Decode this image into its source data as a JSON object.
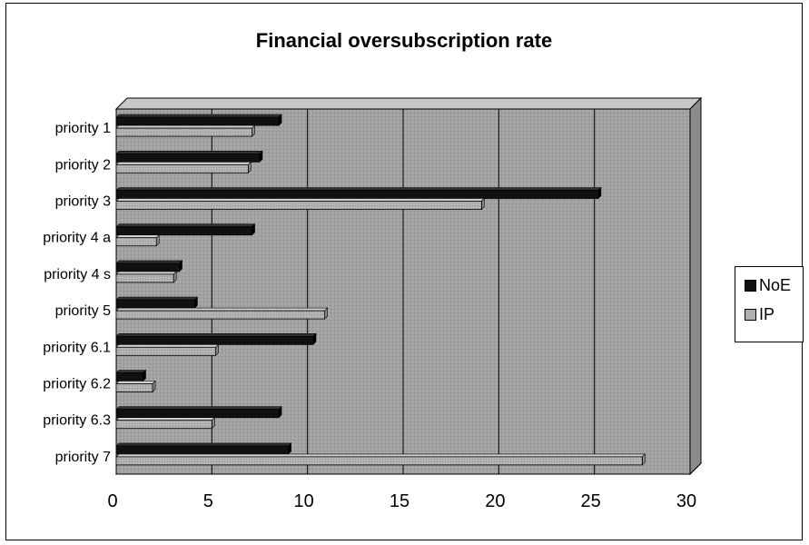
{
  "chart_data": {
    "type": "bar",
    "orientation": "horizontal",
    "title": "Financial oversubscription rate",
    "xlabel": "",
    "ylabel": "",
    "categories": [
      "priority 1",
      "priority 2",
      "priority 3",
      "priority 4 a",
      "priority 4 s",
      "priority 5",
      "priority 6.1",
      "priority 6.2",
      "priority 6.3",
      "priority 7"
    ],
    "series": [
      {
        "name": "NoE",
        "values": [
          8.5,
          7.5,
          25.2,
          7.1,
          3.3,
          4.1,
          10.3,
          1.4,
          8.5,
          9.0
        ],
        "color": "#111111"
      },
      {
        "name": "IP",
        "values": [
          7.1,
          6.9,
          19.1,
          2.1,
          3.0,
          10.9,
          5.2,
          1.9,
          5.0,
          27.5
        ],
        "color": "#a8a8a8"
      }
    ],
    "xlim": [
      0,
      30
    ],
    "xticks": [
      "0",
      "5",
      "10",
      "15",
      "20",
      "25",
      "30"
    ],
    "grid": true,
    "legend": "right",
    "plot_background": "#9a9a9a"
  }
}
